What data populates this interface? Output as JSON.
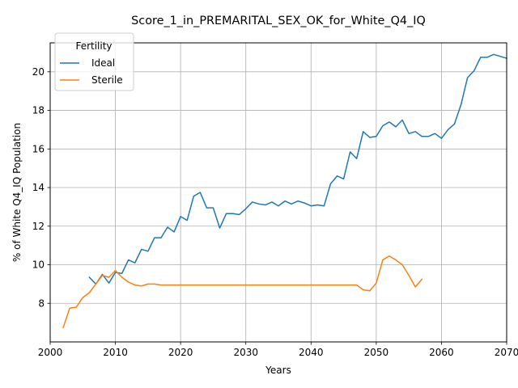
{
  "chart_data": {
    "type": "line",
    "title": "Score_1_in_PREMARITAL_SEX_OK_for_White_Q4_IQ",
    "xlabel": "Years",
    "ylabel": "% of White Q4_IQ Population",
    "xlim": [
      2000,
      2070
    ],
    "ylim": [
      6,
      21.5
    ],
    "xticks": [
      2000,
      2010,
      2020,
      2030,
      2040,
      2050,
      2060,
      2070
    ],
    "yticks": [
      8,
      10,
      12,
      14,
      16,
      18,
      20
    ],
    "grid": true,
    "legend": {
      "title": "Fertility",
      "placement": "top-left"
    },
    "series": [
      {
        "name": "Ideal",
        "color": "#1f77b4",
        "x": [
          2006,
          2007,
          2008,
          2009,
          2010,
          2011,
          2012,
          2013,
          2014,
          2015,
          2016,
          2017,
          2018,
          2019,
          2020,
          2021,
          2022,
          2023,
          2024,
          2025,
          2026,
          2027,
          2028,
          2029,
          2030,
          2031,
          2032,
          2033,
          2034,
          2035,
          2036,
          2037,
          2038,
          2039,
          2040,
          2041,
          2042,
          2043,
          2044,
          2045,
          2046,
          2047,
          2048,
          2049,
          2050,
          2051,
          2052,
          2053,
          2054,
          2055,
          2056,
          2057,
          2058,
          2059,
          2060,
          2061,
          2062,
          2063,
          2064,
          2065,
          2066,
          2067,
          2068,
          2069,
          2070
        ],
        "y": [
          9.35,
          9.0,
          9.5,
          9.05,
          9.6,
          9.55,
          10.25,
          10.1,
          10.8,
          10.7,
          11.4,
          11.4,
          11.95,
          11.7,
          12.5,
          12.3,
          13.55,
          13.75,
          12.95,
          12.95,
          11.9,
          12.65,
          12.65,
          12.6,
          12.9,
          13.25,
          13.15,
          13.1,
          13.25,
          13.05,
          13.3,
          13.15,
          13.3,
          13.2,
          13.05,
          13.1,
          13.05,
          14.2,
          14.6,
          14.45,
          15.85,
          15.5,
          16.9,
          16.6,
          16.65,
          17.2,
          17.4,
          17.15,
          17.5,
          16.8,
          16.9,
          16.65,
          16.65,
          16.8,
          16.55,
          17.0,
          17.3,
          18.3,
          19.7,
          20.05,
          20.75,
          20.75,
          20.9,
          20.8,
          20.7
        ]
      },
      {
        "name": "Sterile",
        "color": "#ff7f0e",
        "x": [
          2002,
          2003,
          2004,
          2005,
          2006,
          2007,
          2008,
          2009,
          2010,
          2011,
          2012,
          2013,
          2014,
          2015,
          2016,
          2017,
          2018,
          2019,
          2020,
          2021,
          2022,
          2023,
          2024,
          2025,
          2026,
          2027,
          2028,
          2029,
          2030,
          2031,
          2032,
          2033,
          2034,
          2035,
          2036,
          2037,
          2038,
          2039,
          2040,
          2041,
          2042,
          2043,
          2044,
          2045,
          2046,
          2047,
          2048,
          2049,
          2050,
          2051,
          2052,
          2053,
          2054,
          2055,
          2056,
          2057
        ],
        "y": [
          6.75,
          7.75,
          7.8,
          8.3,
          8.55,
          9.0,
          9.45,
          9.35,
          9.7,
          9.35,
          9.1,
          8.95,
          8.9,
          9.0,
          9.0,
          8.95,
          8.95,
          8.95,
          8.95,
          8.95,
          8.95,
          8.95,
          8.95,
          8.95,
          8.95,
          8.95,
          8.95,
          8.95,
          8.95,
          8.95,
          8.95,
          8.95,
          8.95,
          8.95,
          8.95,
          8.95,
          8.95,
          8.95,
          8.95,
          8.95,
          8.95,
          8.95,
          8.95,
          8.95,
          8.95,
          8.95,
          8.7,
          8.65,
          9.05,
          10.25,
          10.45,
          10.25,
          10.0,
          9.45,
          8.85,
          9.25
        ]
      }
    ]
  }
}
